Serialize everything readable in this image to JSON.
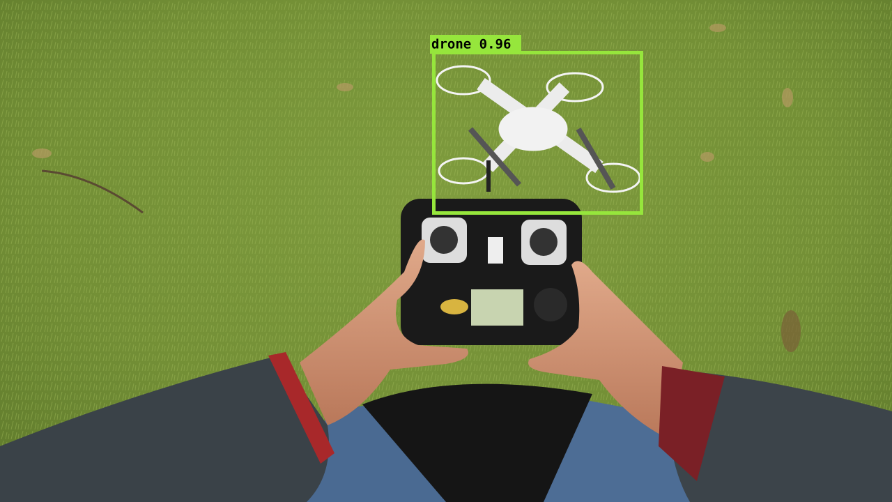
{
  "detections": [
    {
      "label": "drone 0.96"
    }
  ]
}
